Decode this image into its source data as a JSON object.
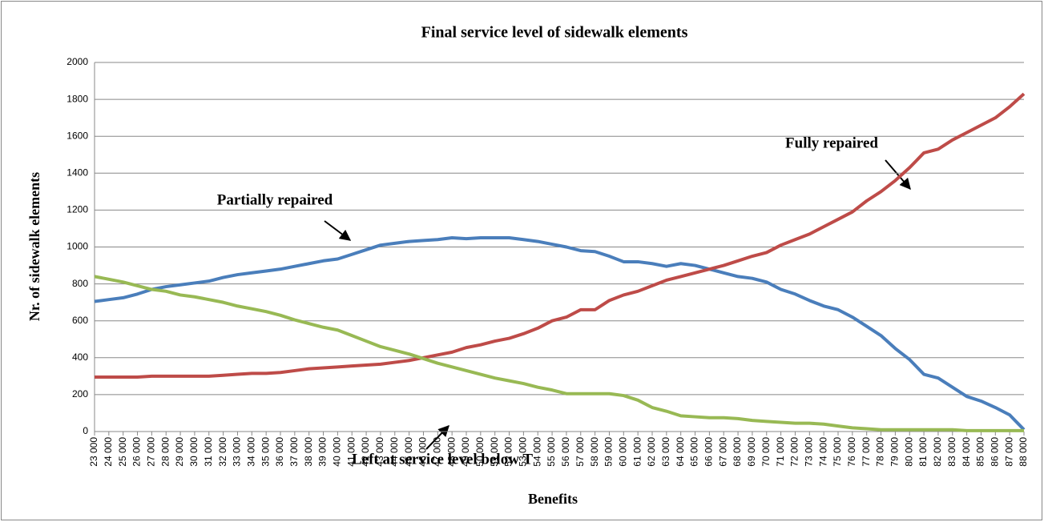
{
  "chart_data": {
    "type": "line",
    "title": "Final service level of sidewalk elements",
    "xlabel": "Benefits",
    "ylabel": "Nr. of sidewalk elements",
    "annotations": [
      "Partially repaired",
      "Fully repaired",
      "Left at service level below T"
    ],
    "x": [
      23000,
      24000,
      25000,
      26000,
      27000,
      28000,
      29000,
      30000,
      31000,
      32000,
      33000,
      34000,
      35000,
      36000,
      37000,
      38000,
      39000,
      40000,
      41000,
      42000,
      43000,
      44000,
      45000,
      46000,
      47000,
      48000,
      49000,
      50000,
      51000,
      52000,
      53000,
      54000,
      55000,
      56000,
      57000,
      58000,
      59000,
      60000,
      61000,
      62000,
      63000,
      64000,
      65000,
      66000,
      67000,
      68000,
      69000,
      70000,
      71000,
      72000,
      73000,
      74000,
      75000,
      76000,
      77000,
      78000,
      79000,
      80000,
      81000,
      82000,
      83000,
      84000,
      85000,
      86000,
      87000,
      88000
    ],
    "series": [
      {
        "name": "Partially repaired",
        "color": "#4a7ebb",
        "values": [
          705,
          715,
          725,
          745,
          770,
          785,
          795,
          805,
          815,
          835,
          850,
          860,
          870,
          880,
          895,
          910,
          925,
          935,
          960,
          985,
          1010,
          1020,
          1030,
          1035,
          1040,
          1050,
          1045,
          1050,
          1050,
          1050,
          1040,
          1030,
          1015,
          1000,
          980,
          975,
          950,
          920,
          920,
          910,
          895,
          910,
          900,
          880,
          860,
          840,
          830,
          810,
          770,
          745,
          710,
          680,
          660,
          620,
          570,
          520,
          450,
          390,
          310,
          290,
          240,
          190,
          165,
          130,
          90,
          10
        ]
      },
      {
        "name": "Fully repaired",
        "color": "#be4b48",
        "values": [
          295,
          295,
          295,
          295,
          300,
          300,
          300,
          300,
          300,
          305,
          310,
          315,
          315,
          320,
          330,
          340,
          345,
          350,
          355,
          360,
          365,
          375,
          385,
          400,
          415,
          430,
          455,
          470,
          490,
          505,
          530,
          560,
          600,
          620,
          660,
          660,
          710,
          740,
          760,
          790,
          820,
          840,
          860,
          880,
          900,
          925,
          950,
          970,
          1010,
          1040,
          1070,
          1110,
          1150,
          1190,
          1250,
          1300,
          1360,
          1430,
          1510,
          1530,
          1580,
          1620,
          1660,
          1700,
          1760,
          1830
        ]
      },
      {
        "name": "Left at service level below T",
        "color": "#98b954",
        "values": [
          840,
          825,
          810,
          790,
          770,
          760,
          740,
          730,
          715,
          700,
          680,
          665,
          650,
          630,
          605,
          585,
          565,
          550,
          520,
          490,
          460,
          440,
          420,
          395,
          370,
          350,
          330,
          310,
          290,
          275,
          260,
          240,
          225,
          205,
          205,
          205,
          205,
          195,
          170,
          130,
          110,
          85,
          80,
          75,
          75,
          70,
          60,
          55,
          50,
          45,
          45,
          40,
          30,
          20,
          15,
          10,
          10,
          10,
          10,
          10,
          10,
          5,
          5,
          5,
          5,
          5
        ]
      }
    ],
    "xlim": [
      23000,
      88000
    ],
    "xticks": [
      {
        "value": 23000,
        "label": "23 000"
      },
      {
        "value": 24000,
        "label": "24 000"
      },
      {
        "value": 25000,
        "label": "25 000"
      },
      {
        "value": 26000,
        "label": "26 000"
      },
      {
        "value": 27000,
        "label": "27 000"
      },
      {
        "value": 28000,
        "label": "28 000"
      },
      {
        "value": 29000,
        "label": "29 000"
      },
      {
        "value": 30000,
        "label": "30 000"
      },
      {
        "value": 31000,
        "label": "31 000"
      },
      {
        "value": 32000,
        "label": "32 000"
      },
      {
        "value": 33000,
        "label": "33 000"
      },
      {
        "value": 34000,
        "label": "34 000"
      },
      {
        "value": 35000,
        "label": "35 000"
      },
      {
        "value": 36000,
        "label": "36 000"
      },
      {
        "value": 37000,
        "label": "37 000"
      },
      {
        "value": 38000,
        "label": "38 000"
      },
      {
        "value": 39000,
        "label": "39 000"
      },
      {
        "value": 40000,
        "label": "40 000"
      },
      {
        "value": 41000,
        "label": "41 000"
      },
      {
        "value": 42000,
        "label": "42 000"
      },
      {
        "value": 43000,
        "label": "43 000"
      },
      {
        "value": 44000,
        "label": "44 000"
      },
      {
        "value": 45000,
        "label": "45 000"
      },
      {
        "value": 46000,
        "label": "46 000"
      },
      {
        "value": 47000,
        "label": "47 000"
      },
      {
        "value": 48000,
        "label": "48 000"
      },
      {
        "value": 49000,
        "label": "49 000"
      },
      {
        "value": 50000,
        "label": "50 000"
      },
      {
        "value": 51000,
        "label": "51 000"
      },
      {
        "value": 52000,
        "label": "52 000"
      },
      {
        "value": 53000,
        "label": "53 000"
      },
      {
        "value": 54000,
        "label": "54 000"
      },
      {
        "value": 55000,
        "label": "55 000"
      },
      {
        "value": 56000,
        "label": "56 000"
      },
      {
        "value": 57000,
        "label": "57 000"
      },
      {
        "value": 58000,
        "label": "58 000"
      },
      {
        "value": 59000,
        "label": "59 000"
      },
      {
        "value": 60000,
        "label": "60 000"
      },
      {
        "value": 61000,
        "label": "61 000"
      },
      {
        "value": 62000,
        "label": "62 000"
      },
      {
        "value": 63000,
        "label": "63 000"
      },
      {
        "value": 64000,
        "label": "64 000"
      },
      {
        "value": 65000,
        "label": "65 000"
      },
      {
        "value": 66000,
        "label": "66 000"
      },
      {
        "value": 67000,
        "label": "67 000"
      },
      {
        "value": 68000,
        "label": "68 000"
      },
      {
        "value": 69000,
        "label": "69 000"
      },
      {
        "value": 70000,
        "label": "70 000"
      },
      {
        "value": 71000,
        "label": "71 000"
      },
      {
        "value": 72000,
        "label": "72 000"
      },
      {
        "value": 73000,
        "label": "73 000"
      },
      {
        "value": 74000,
        "label": "74 000"
      },
      {
        "value": 75000,
        "label": "75 000"
      },
      {
        "value": 76000,
        "label": "76 000"
      },
      {
        "value": 77000,
        "label": "77 000"
      },
      {
        "value": 78000,
        "label": "78 000"
      },
      {
        "value": 79000,
        "label": "79 000"
      },
      {
        "value": 80000,
        "label": "80 000"
      },
      {
        "value": 81000,
        "label": "81 000"
      },
      {
        "value": 82000,
        "label": "82 000"
      },
      {
        "value": 83000,
        "label": "83 000"
      },
      {
        "value": 84000,
        "label": "84 000"
      },
      {
        "value": 85000,
        "label": "85 000"
      },
      {
        "value": 86000,
        "label": "86 000"
      },
      {
        "value": 87000,
        "label": "87 000"
      },
      {
        "value": 88000,
        "label": "88 000"
      }
    ],
    "ylim": [
      0,
      2000
    ],
    "yticks": [
      0,
      200,
      400,
      600,
      800,
      1000,
      1200,
      1400,
      1600,
      1800,
      2000
    ],
    "grid": true
  }
}
